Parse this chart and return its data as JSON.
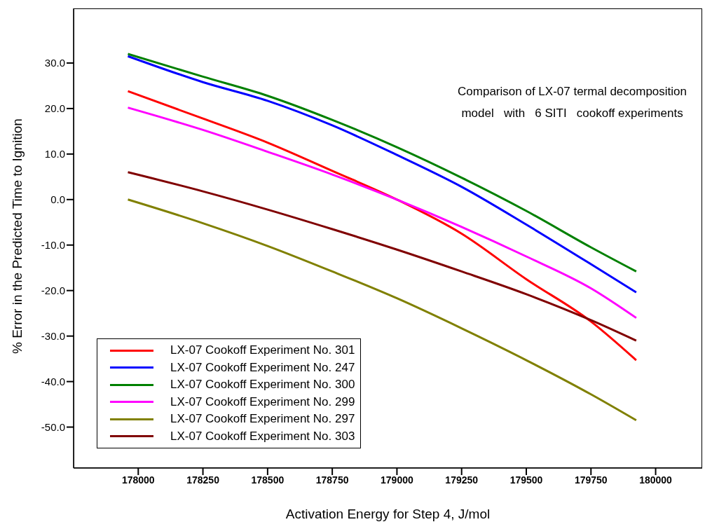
{
  "chart_data": {
    "type": "line",
    "xlabel": "Activation Energy for Step 4, J/mol",
    "ylabel": "% Error in the Predicted Time to Ignition",
    "annotations": [
      "Comparison of LX-07 termal decomposition",
      "model   with   6 SITI   cookoff experiments"
    ],
    "x": [
      177960,
      178250,
      178500,
      178750,
      179000,
      179250,
      179500,
      179750,
      179925
    ],
    "series": [
      {
        "name": "LX-07 Cookoff Experiment No. 301",
        "color": "#ff0000",
        "values": [
          23.8,
          17.8,
          12.5,
          6.3,
          0,
          -7.5,
          -17.5,
          -26.8,
          -35.3
        ]
      },
      {
        "name": "LX-07 Cookoff Experiment No. 247",
        "color": "#0000ff",
        "values": [
          31.5,
          25.8,
          21.7,
          16.3,
          9.8,
          2.8,
          -5.5,
          -14.2,
          -20.4
        ]
      },
      {
        "name": "LX-07 Cookoff Experiment No. 300",
        "color": "#008000",
        "values": [
          32.0,
          27.0,
          22.8,
          17.5,
          11.5,
          4.8,
          -2.5,
          -10.5,
          -15.8
        ]
      },
      {
        "name": "LX-07 Cookoff Experiment No. 299",
        "color": "#ff00ff",
        "values": [
          20.2,
          15.3,
          10.5,
          5.5,
          0,
          -6.0,
          -12.5,
          -19.5,
          -26.0
        ]
      },
      {
        "name": "LX-07 Cookoff Experiment No. 297",
        "color": "#808000",
        "values": [
          0,
          -5.2,
          -10.2,
          -15.8,
          -21.7,
          -28.3,
          -35.3,
          -42.8,
          -48.5
        ]
      },
      {
        "name": "LX-07 Cookoff Experiment No. 303",
        "color": "#800000",
        "values": [
          6.0,
          1.8,
          -2.2,
          -6.5,
          -11.0,
          -15.8,
          -20.8,
          -26.5,
          -31.0
        ]
      }
    ],
    "xlim": [
      177750,
      180180
    ],
    "xticks": [
      178000,
      178250,
      178500,
      178750,
      179000,
      179250,
      179500,
      179750,
      180000
    ],
    "ylim": [
      -59,
      42
    ],
    "yticks": [
      {
        "value": 30,
        "label": "30.0"
      },
      {
        "value": 20,
        "label": "20.0"
      },
      {
        "value": 10,
        "label": "10.0"
      },
      {
        "value": 0,
        "label": "0.0"
      },
      {
        "value": -10,
        "label": "-10.0"
      },
      {
        "value": -20,
        "label": "-20.0"
      },
      {
        "value": -30,
        "label": "-30.0"
      },
      {
        "value": -40,
        "label": "-40.0"
      },
      {
        "value": -50,
        "label": "-50.0"
      }
    ],
    "grid": false,
    "legend": "bottom left",
    "marker": "none",
    "line_style": "solid"
  }
}
